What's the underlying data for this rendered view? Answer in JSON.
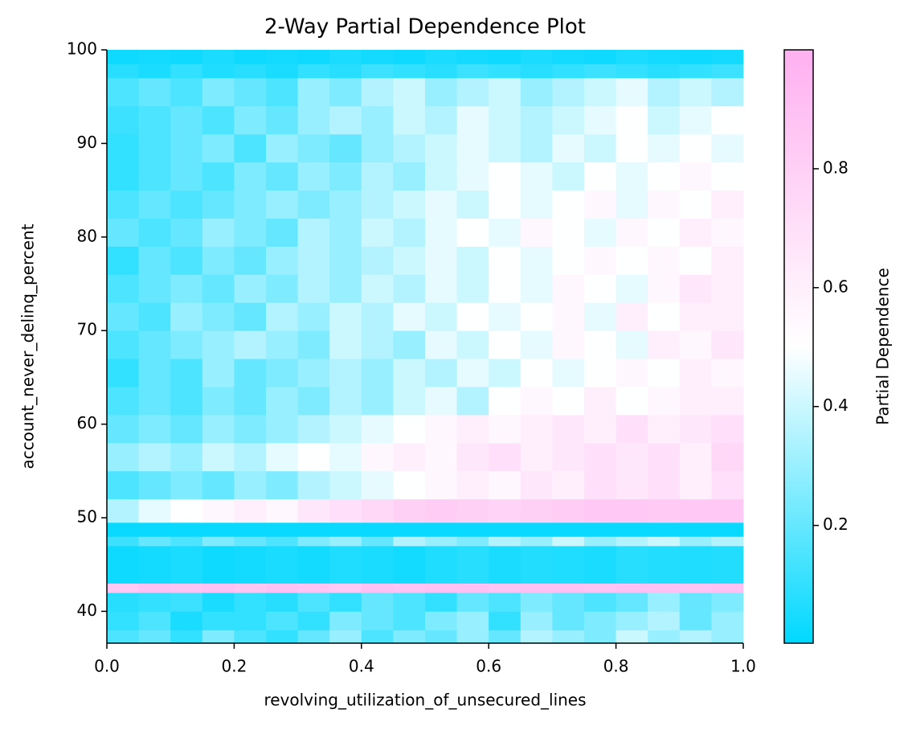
{
  "chart_data": {
    "type": "heatmap",
    "title": "2-Way Partial Dependence Plot",
    "xlabel": "revolving_utilization_of_unsecured_lines",
    "ylabel": "account_never_delinq_percent",
    "colorbar_label": "Partial Dependence",
    "colormap": [
      "#00d8ff",
      "#ffffff",
      "#ffb0f0"
    ],
    "clim": [
      0.002,
      1.0
    ],
    "cticks": [
      0.2,
      0.4,
      0.6,
      0.8
    ],
    "xlim": [
      0,
      1
    ],
    "xticks": [
      {
        "value": 0,
        "label": "0.0"
      },
      {
        "value": 0.2,
        "label": "0.2"
      },
      {
        "value": 0.4,
        "label": "0.4"
      },
      {
        "value": 0.6,
        "label": "0.6"
      },
      {
        "value": 0.8,
        "label": "0.8"
      },
      {
        "value": 1,
        "label": "1.0"
      }
    ],
    "ylim": [
      36.6,
      100
    ],
    "yticks": [
      40,
      50,
      60,
      70,
      80,
      90,
      100
    ],
    "x": [
      0,
      0.05,
      0.1,
      0.15,
      0.2,
      0.25,
      0.3,
      0.35,
      0.4,
      0.45,
      0.5,
      0.55,
      0.6,
      0.65,
      0.7,
      0.75,
      0.8,
      0.85,
      0.9,
      0.95,
      1
    ],
    "y": [
      36.6,
      38,
      40,
      42,
      43,
      47,
      48,
      49.5,
      52,
      55,
      58,
      61,
      64,
      67,
      70,
      73,
      76,
      79,
      82,
      85,
      88,
      91,
      94,
      97,
      98.5,
      100
    ],
    "z": [
      [
        0.15,
        0.2,
        0.1,
        0.25,
        0.15,
        0.1,
        0.2,
        0.3,
        0.15,
        0.25,
        0.2,
        0.3,
        0.2,
        0.35,
        0.3,
        0.25,
        0.4,
        0.3,
        0.35,
        0.3
      ],
      [
        0.1,
        0.15,
        0.05,
        0.1,
        0.1,
        0.15,
        0.1,
        0.25,
        0.2,
        0.15,
        0.25,
        0.3,
        0.1,
        0.3,
        0.2,
        0.25,
        0.3,
        0.35,
        0.2,
        0.3
      ],
      [
        0.08,
        0.1,
        0.12,
        0.05,
        0.1,
        0.08,
        0.15,
        0.1,
        0.2,
        0.15,
        0.1,
        0.2,
        0.15,
        0.25,
        0.2,
        0.15,
        0.2,
        0.3,
        0.2,
        0.25
      ],
      [
        0.85,
        0.9,
        0.88,
        0.9,
        0.86,
        0.9,
        0.88,
        0.85,
        0.9,
        0.88,
        0.9,
        0.9,
        0.88,
        0.9,
        0.9,
        0.88,
        0.9,
        0.9,
        0.88,
        0.9
      ],
      [
        0.03,
        0.04,
        0.05,
        0.03,
        0.04,
        0.05,
        0.04,
        0.06,
        0.05,
        0.04,
        0.06,
        0.08,
        0.05,
        0.07,
        0.06,
        0.05,
        0.08,
        0.07,
        0.06,
        0.07
      ],
      [
        0.12,
        0.2,
        0.15,
        0.25,
        0.2,
        0.15,
        0.25,
        0.3,
        0.2,
        0.35,
        0.3,
        0.25,
        0.35,
        0.3,
        0.4,
        0.3,
        0.35,
        0.4,
        0.3,
        0.35
      ],
      [
        0.02,
        0.02,
        0.02,
        0.02,
        0.02,
        0.02,
        0.02,
        0.02,
        0.02,
        0.02,
        0.02,
        0.02,
        0.02,
        0.02,
        0.02,
        0.02,
        0.02,
        0.02,
        0.02,
        0.02
      ],
      [
        0.35,
        0.45,
        0.5,
        0.55,
        0.6,
        0.55,
        0.65,
        0.7,
        0.75,
        0.8,
        0.82,
        0.8,
        0.78,
        0.8,
        0.82,
        0.85,
        0.85,
        0.83,
        0.85,
        0.85
      ],
      [
        0.15,
        0.2,
        0.25,
        0.2,
        0.3,
        0.25,
        0.35,
        0.4,
        0.45,
        0.5,
        0.55,
        0.6,
        0.55,
        0.65,
        0.6,
        0.7,
        0.65,
        0.7,
        0.6,
        0.7
      ],
      [
        0.3,
        0.35,
        0.3,
        0.4,
        0.35,
        0.45,
        0.5,
        0.45,
        0.55,
        0.6,
        0.55,
        0.65,
        0.7,
        0.6,
        0.65,
        0.7,
        0.65,
        0.7,
        0.6,
        0.75
      ],
      [
        0.2,
        0.25,
        0.2,
        0.3,
        0.25,
        0.3,
        0.35,
        0.4,
        0.45,
        0.5,
        0.55,
        0.6,
        0.55,
        0.6,
        0.65,
        0.6,
        0.7,
        0.6,
        0.65,
        0.7
      ],
      [
        0.15,
        0.2,
        0.15,
        0.25,
        0.2,
        0.3,
        0.25,
        0.35,
        0.3,
        0.4,
        0.45,
        0.35,
        0.5,
        0.55,
        0.5,
        0.6,
        0.5,
        0.55,
        0.6,
        0.6
      ],
      [
        0.1,
        0.2,
        0.15,
        0.3,
        0.2,
        0.25,
        0.3,
        0.35,
        0.3,
        0.4,
        0.35,
        0.45,
        0.4,
        0.5,
        0.45,
        0.5,
        0.55,
        0.5,
        0.6,
        0.55
      ],
      [
        0.15,
        0.2,
        0.25,
        0.3,
        0.35,
        0.3,
        0.25,
        0.4,
        0.35,
        0.3,
        0.45,
        0.4,
        0.5,
        0.45,
        0.55,
        0.5,
        0.45,
        0.6,
        0.55,
        0.65
      ],
      [
        0.2,
        0.15,
        0.3,
        0.25,
        0.2,
        0.35,
        0.3,
        0.4,
        0.35,
        0.45,
        0.4,
        0.5,
        0.45,
        0.5,
        0.55,
        0.45,
        0.6,
        0.5,
        0.6,
        0.6
      ],
      [
        0.15,
        0.2,
        0.25,
        0.2,
        0.3,
        0.25,
        0.35,
        0.3,
        0.4,
        0.35,
        0.45,
        0.4,
        0.5,
        0.45,
        0.55,
        0.5,
        0.45,
        0.55,
        0.65,
        0.6
      ],
      [
        0.1,
        0.2,
        0.15,
        0.25,
        0.2,
        0.3,
        0.35,
        0.3,
        0.35,
        0.4,
        0.45,
        0.4,
        0.5,
        0.45,
        0.5,
        0.55,
        0.5,
        0.55,
        0.5,
        0.6
      ],
      [
        0.2,
        0.15,
        0.2,
        0.3,
        0.25,
        0.2,
        0.35,
        0.3,
        0.4,
        0.35,
        0.45,
        0.5,
        0.45,
        0.55,
        0.5,
        0.45,
        0.55,
        0.5,
        0.6,
        0.55
      ],
      [
        0.15,
        0.2,
        0.15,
        0.2,
        0.25,
        0.3,
        0.25,
        0.3,
        0.35,
        0.4,
        0.45,
        0.4,
        0.5,
        0.45,
        0.5,
        0.55,
        0.45,
        0.55,
        0.5,
        0.6
      ],
      [
        0.1,
        0.15,
        0.2,
        0.15,
        0.25,
        0.2,
        0.3,
        0.25,
        0.35,
        0.3,
        0.4,
        0.45,
        0.5,
        0.45,
        0.4,
        0.5,
        0.45,
        0.5,
        0.55,
        0.5
      ],
      [
        0.1,
        0.15,
        0.2,
        0.25,
        0.15,
        0.3,
        0.25,
        0.2,
        0.3,
        0.35,
        0.4,
        0.45,
        0.4,
        0.35,
        0.45,
        0.4,
        0.5,
        0.45,
        0.5,
        0.45
      ],
      [
        0.12,
        0.15,
        0.2,
        0.15,
        0.25,
        0.2,
        0.3,
        0.35,
        0.3,
        0.4,
        0.35,
        0.45,
        0.4,
        0.35,
        0.4,
        0.45,
        0.5,
        0.4,
        0.45,
        0.5
      ],
      [
        0.15,
        0.2,
        0.15,
        0.25,
        0.2,
        0.15,
        0.3,
        0.25,
        0.35,
        0.4,
        0.3,
        0.35,
        0.4,
        0.3,
        0.35,
        0.4,
        0.45,
        0.35,
        0.4,
        0.35
      ],
      [
        0.08,
        0.05,
        0.1,
        0.06,
        0.08,
        0.05,
        0.1,
        0.08,
        0.12,
        0.1,
        0.08,
        0.12,
        0.1,
        0.08,
        0.1,
        0.12,
        0.1,
        0.08,
        0.1,
        0.12
      ],
      [
        0.03,
        0.04,
        0.03,
        0.05,
        0.03,
        0.04,
        0.03,
        0.05,
        0.04,
        0.03,
        0.05,
        0.04,
        0.03,
        0.05,
        0.04,
        0.03,
        0.05,
        0.04,
        0.03,
        0.04
      ]
    ]
  }
}
